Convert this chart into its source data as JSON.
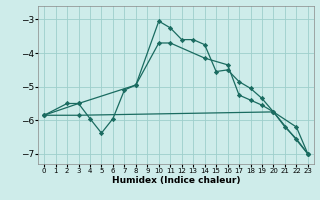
{
  "xlabel": "Humidex (Indice chaleur)",
  "background_color": "#ceecea",
  "grid_color": "#9ecfcc",
  "line_color": "#1a6b60",
  "xlim": [
    -0.5,
    23.5
  ],
  "ylim": [
    -7.3,
    -2.6
  ],
  "yticks": [
    -7,
    -6,
    -5,
    -4,
    -3
  ],
  "xticks": [
    0,
    1,
    2,
    3,
    4,
    5,
    6,
    7,
    8,
    9,
    10,
    11,
    12,
    13,
    14,
    15,
    16,
    17,
    18,
    19,
    20,
    21,
    22,
    23
  ],
  "line1_x": [
    0,
    2,
    3,
    8,
    10,
    11,
    12,
    13,
    14,
    15,
    16,
    17,
    18,
    19,
    20,
    21,
    22,
    23
  ],
  "line1_y": [
    -5.85,
    -5.5,
    -5.5,
    -4.95,
    -3.05,
    -3.25,
    -3.6,
    -3.6,
    -3.75,
    -4.55,
    -4.5,
    -4.85,
    -5.05,
    -5.35,
    -5.75,
    -6.2,
    -6.55,
    -7.0
  ],
  "line2_x": [
    0,
    3,
    4,
    5,
    6,
    7,
    8,
    10,
    11,
    14,
    16,
    17,
    18,
    19,
    20,
    22,
    23
  ],
  "line2_y": [
    -5.85,
    -5.5,
    -5.95,
    -6.38,
    -5.95,
    -5.1,
    -4.95,
    -3.7,
    -3.7,
    -4.15,
    -4.35,
    -5.25,
    -5.4,
    -5.55,
    -5.75,
    -6.2,
    -7.0
  ],
  "line3_x": [
    0,
    3,
    20,
    23
  ],
  "line3_y": [
    -5.85,
    -5.85,
    -5.75,
    -7.0
  ]
}
